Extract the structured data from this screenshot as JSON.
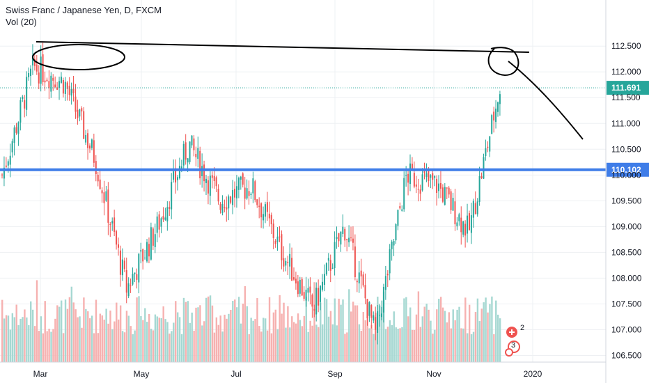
{
  "legend": {
    "title": "Swiss Franc / Japanese Yen, D, FXCM",
    "indicator": "Vol (20)"
  },
  "colors": {
    "up": "#26a69a",
    "down": "#ef5350",
    "vol_up": "#a6d8d2",
    "vol_down": "#f6b1b0",
    "support_line": "#3f7de8",
    "last_price": "#26a69a",
    "grid": "#eef0f3",
    "drawing": "#000000"
  },
  "markers": {
    "top": "2",
    "bottom": "3"
  },
  "chart_data": {
    "type": "candlestick",
    "title": "Swiss Franc / Japanese Yen, D, FXCM",
    "y_axis": {
      "ylim": [
        106.25,
        112.75
      ],
      "ticks": [
        "112.500",
        "112.000",
        "111.500",
        "111.000",
        "110.500",
        "110.000",
        "109.500",
        "109.000",
        "108.500",
        "108.000",
        "107.500",
        "107.000",
        "106.500"
      ],
      "position": "right"
    },
    "x_axis": {
      "ticks": [
        "Mar",
        "May",
        "Jul",
        "Sep",
        "Nov",
        "2020"
      ]
    },
    "grid": true,
    "last_price": {
      "label": "111.691",
      "value": 111.691
    },
    "horizontal_line": {
      "label": "110.102",
      "value": 110.102
    },
    "series": [
      {
        "name": "Vol (20)",
        "type": "volume"
      }
    ],
    "key_points": [
      {
        "period": "Feb",
        "close": 110.0
      },
      {
        "period": "Mar",
        "close": 112.1
      },
      {
        "period": "Apr",
        "close": 111.8
      },
      {
        "period": "Apr end",
        "close": 110.3
      },
      {
        "period": "May",
        "close": 107.8
      },
      {
        "period": "Jun",
        "close": 109.0
      },
      {
        "period": "Jul",
        "close": 110.6
      },
      {
        "period": "Jul mid",
        "close": 109.5
      },
      {
        "period": "Aug",
        "close": 109.8
      },
      {
        "period": "Aug mid",
        "close": 108.5
      },
      {
        "period": "Sep",
        "close": 107.4
      },
      {
        "period": "Sep mid",
        "close": 109.0
      },
      {
        "period": "Sep end",
        "close": 106.9
      },
      {
        "period": "Oct",
        "close": 110.0
      },
      {
        "period": "Nov",
        "close": 109.8
      },
      {
        "period": "Nov end",
        "close": 108.9
      },
      {
        "period": "Dec mid",
        "close": 111.7
      }
    ]
  }
}
